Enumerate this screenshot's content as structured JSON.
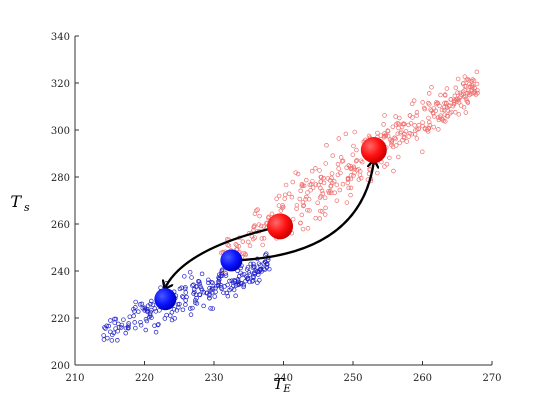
{
  "chart_data": {
    "type": "scatter",
    "title": "",
    "xlabel": "T",
    "xlabel_sub": "E",
    "ylabel": "T",
    "ylabel_sub": "s",
    "xlim": [
      210,
      270
    ],
    "ylim": [
      200,
      340
    ],
    "xticks": [
      210,
      220,
      230,
      240,
      250,
      260,
      270
    ],
    "yticks": [
      200,
      220,
      240,
      260,
      280,
      300,
      320,
      340
    ],
    "grid": false,
    "legend": "none",
    "colors": {
      "cold_cloud": "#2020c8",
      "warm_cloud": "#f07070",
      "cold_state": "#0a14ff",
      "warm_state": "#ff1010",
      "arrow": "#000000"
    },
    "series": [
      {
        "kind": "cloud",
        "color_key": "cold_cloud",
        "x_range": [
          214,
          238
        ],
        "y_at_start": 214,
        "y_at_end": 243,
        "spread": 4,
        "n_points": 260
      },
      {
        "kind": "cloud",
        "color_key": "warm_cloud",
        "x_range": [
          231,
          268
        ],
        "y_at_start": 246,
        "y_at_end": 320,
        "spread": 6,
        "n_points": 420
      }
    ],
    "states": [
      {
        "x": 223,
        "y": 228,
        "color_key": "cold_state"
      },
      {
        "x": 232.5,
        "y": 244.5,
        "color_key": "cold_state"
      },
      {
        "x": 239.5,
        "y": 259,
        "color_key": "warm_state"
      },
      {
        "x": 253,
        "y": 291.5,
        "color_key": "warm_state"
      }
    ],
    "arrows": [
      {
        "from": [
          239.5,
          259
        ],
        "to": [
          223,
          228
        ],
        "via": [
          226,
          250
        ]
      },
      {
        "from": [
          232.5,
          244.5
        ],
        "to": [
          253,
          291.5
        ],
        "via": [
          251,
          246
        ]
      }
    ]
  }
}
